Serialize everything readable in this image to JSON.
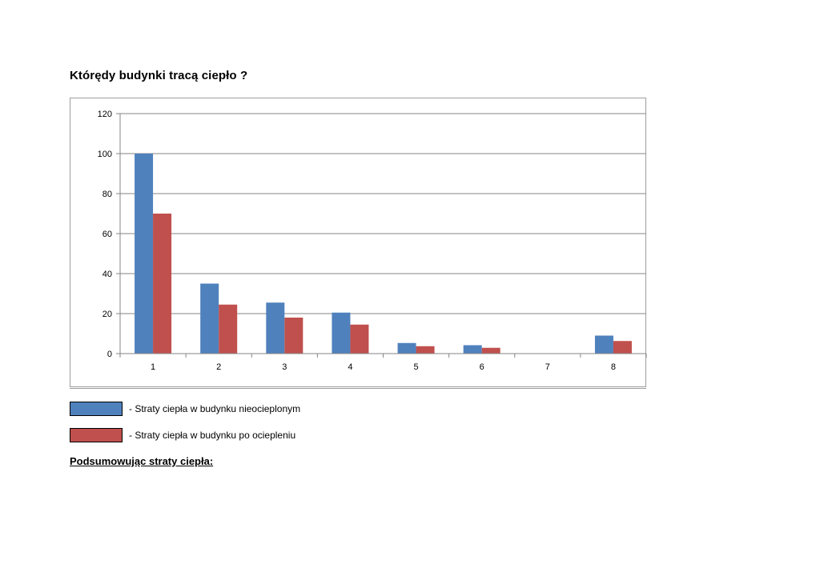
{
  "page": {
    "title": "Którędy budynki tracą ciepło ?",
    "summary": "Podsumowując straty ciepła:"
  },
  "legend": [
    {
      "label": "- Straty ciepła w budynku nieocieplonym",
      "color": "#4f81bd"
    },
    {
      "label": "- Straty ciepła w budynku po ociepleniu",
      "color": "#c0504d"
    }
  ],
  "chart_data": {
    "type": "bar",
    "categories": [
      "1",
      "2",
      "3",
      "4",
      "5",
      "6",
      "7",
      "8"
    ],
    "series": [
      {
        "values": [
          100,
          35,
          25.5,
          20.5,
          5.3,
          4.2,
          0,
          9
        ],
        "color": "#4f81bd"
      },
      {
        "values": [
          70,
          24.5,
          18,
          14.5,
          3.7,
          2.9,
          0,
          6.3
        ],
        "color": "#c0504d"
      }
    ],
    "yticks": [
      "0",
      "20",
      "40",
      "60",
      "80",
      "100",
      "120"
    ],
    "ylim": [
      0,
      120
    ],
    "grid": true,
    "legend_position": "bottom-left"
  }
}
